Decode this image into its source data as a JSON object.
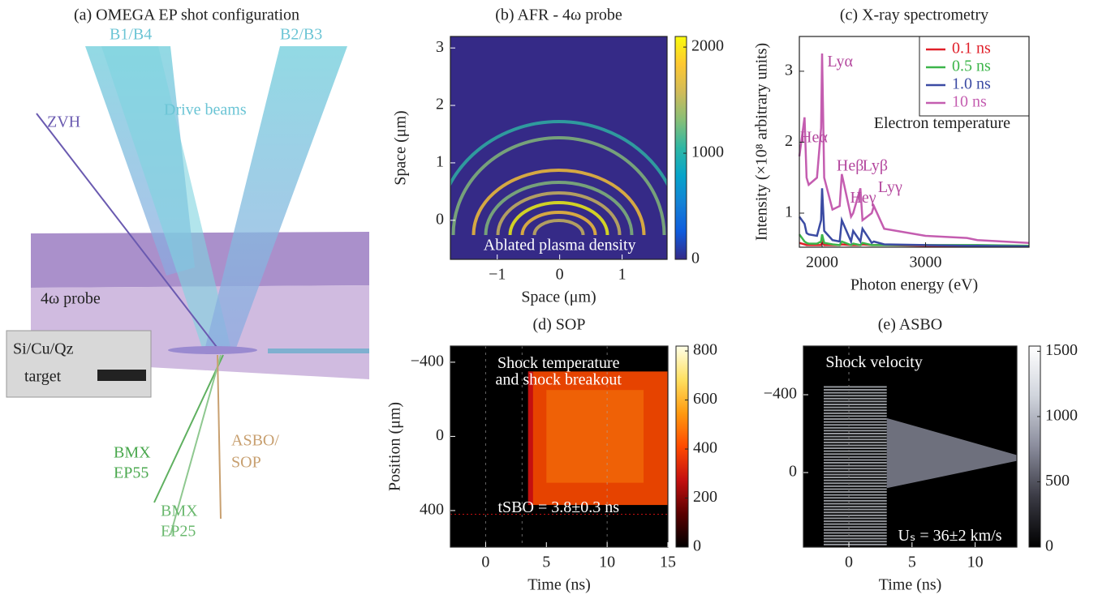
{
  "diagram": {
    "title": "(a) OMEGA EP shot configuration",
    "labels": {
      "b14": "B1/B4",
      "b23": "B2/B3",
      "drive": "Drive beams",
      "zvh": "ZVH",
      "probe": "4ω probe",
      "target1": "Si/Cu/Qz",
      "target2": "target",
      "bmx55a": "BMX",
      "bmx55b": "EP55",
      "bmx25a": "BMX",
      "bmx25b": "EP25",
      "asbo1": "ASBO/",
      "asbo2": "SOP"
    }
  },
  "chart_data": [
    {
      "type": "heatmap",
      "title": "(b) AFR - 4ω probe",
      "xlabel": "Space (μm)",
      "ylabel": "Space (μm)",
      "xlim": [
        -1.75,
        1.72
      ],
      "ylim": [
        -0.68,
        3.2
      ],
      "xticks": [
        {
          "value": -1,
          "label": "−1"
        },
        0,
        1
      ],
      "yticks": [
        0,
        1,
        2,
        3
      ],
      "clim": [
        0,
        2100
      ],
      "cticks": [
        0,
        1000,
        2000
      ],
      "colors": [
        "#352a87",
        "#0f5cdd",
        "#1481d6",
        "#06a4ca",
        "#2eb7a4",
        "#87bf77",
        "#d1bb59",
        "#fec832",
        "#f9fb0e"
      ],
      "annotations": [
        "Ablated plasma density"
      ]
    },
    {
      "type": "line",
      "title": "(c) X-ray spectrometry",
      "xlabel": "Photon energy (eV)",
      "ylabel": "Intensity (×10⁸ arbitrary units)",
      "xlim": [
        1780,
        4000
      ],
      "ylim": [
        0.52,
        3.49
      ],
      "xticks": [
        2000,
        3000
      ],
      "yticks": [
        1,
        2,
        3
      ],
      "legend": "upper right",
      "x": [
        1780,
        1830,
        1850,
        1870,
        1950,
        1990,
        2000,
        2020,
        2100,
        2170,
        2190,
        2280,
        2300,
        2370,
        2390,
        2480,
        2500,
        2600,
        3000,
        3400,
        3500,
        4000
      ],
      "series": [
        {
          "name": "0.1 ns",
          "color": "#e0202a",
          "values": [
            0.58,
            0.56,
            0.55,
            0.55,
            0.55,
            0.55,
            0.6,
            0.55,
            0.55,
            0.55,
            0.56,
            0.55,
            0.55,
            0.55,
            0.56,
            0.55,
            0.55,
            0.55,
            0.54,
            0.54,
            0.54,
            0.54
          ]
        },
        {
          "name": "0.5 ns",
          "color": "#3cb54a",
          "values": [
            0.7,
            0.6,
            0.58,
            0.57,
            0.57,
            0.6,
            0.7,
            0.58,
            0.56,
            0.55,
            0.6,
            0.55,
            0.57,
            0.55,
            0.58,
            0.55,
            0.55,
            0.55,
            0.55,
            0.55,
            0.55,
            0.54
          ]
        },
        {
          "name": "1.0 ns",
          "color": "#3b4ba3",
          "values": [
            0.95,
            0.85,
            0.72,
            0.7,
            0.68,
            0.9,
            1.35,
            0.75,
            0.62,
            0.6,
            0.9,
            0.6,
            0.75,
            0.6,
            0.78,
            0.58,
            0.6,
            0.56,
            0.55,
            0.54,
            0.54,
            0.53
          ]
        },
        {
          "name": "10 ns",
          "color": "#c45db0",
          "values": [
            1.8,
            2.35,
            1.5,
            1.4,
            1.5,
            2.2,
            3.25,
            1.5,
            1.05,
            1.1,
            1.55,
            0.95,
            1.0,
            1.35,
            0.9,
            1.0,
            1.1,
            0.78,
            0.68,
            0.65,
            0.62,
            0.58
          ]
        }
      ],
      "annotations": [
        "Heα",
        "Lyα",
        "Heβ",
        "Lyβ",
        "Heγ",
        "Lyγ",
        "Electron temperature"
      ]
    },
    {
      "type": "heatmap",
      "title": "(d) SOP",
      "xlabel": "Time (ns)",
      "ylabel": "Position (μm)",
      "xlim": [
        -2.9,
        15
      ],
      "ylim": [
        597,
        -487
      ],
      "xticks": [
        0,
        5,
        10,
        15
      ],
      "yticks": [
        {
          "value": -400,
          "label": "−400"
        },
        0,
        400
      ],
      "clim": [
        0,
        820
      ],
      "cticks": [
        0,
        200,
        400,
        600,
        800
      ],
      "colors": [
        "#000000",
        "#5a0000",
        "#c41010",
        "#ff4a00",
        "#ff9a10",
        "#ffe060",
        "#ffffe8"
      ],
      "annotations": [
        "Shock temperature",
        "and shock breakout",
        "tSBO = 3.8±0.3 ns"
      ]
    },
    {
      "type": "heatmap",
      "title": "(e) ASBO",
      "xlabel": "Time (ns)",
      "xlim": [
        -3.6,
        13.3
      ],
      "ylim": [
        383,
        -650
      ],
      "xticks": [
        0,
        5,
        10
      ],
      "yticks": [
        {
          "value": -400,
          "label": "−400"
        },
        0
      ],
      "clim": [
        0,
        1540
      ],
      "cticks": [
        0,
        500,
        1000,
        1500
      ],
      "colors": [
        "#000000",
        "#3a3a44",
        "#8a8c9c",
        "#d0d4dc",
        "#ffffff"
      ],
      "annotations": [
        "Shock velocity",
        "Uₛ = 36±2 km/s"
      ]
    }
  ]
}
